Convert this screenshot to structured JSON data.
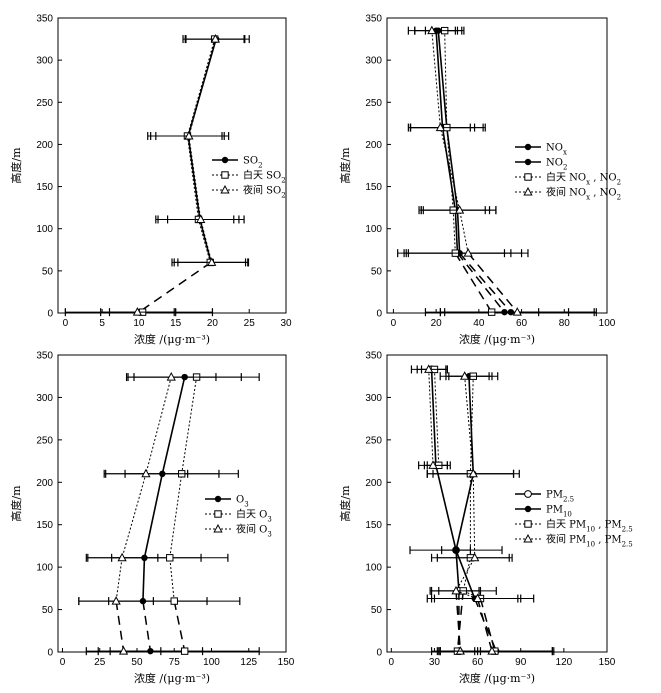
{
  "chart_data": [
    {
      "type": "line",
      "id": "so2",
      "xlabel": "浓度 /(μg·m⁻³)",
      "ylabel": "高度/m",
      "xlim": [
        -1,
        30
      ],
      "ylim": [
        0,
        350
      ],
      "xticks": [
        0,
        5,
        10,
        15,
        20,
        25,
        30
      ],
      "yticks": [
        0,
        50,
        100,
        150,
        200,
        250,
        300,
        350
      ],
      "legend_position": "right-middle",
      "series": [
        {
          "name": "SO₂",
          "marker": "dot",
          "line": "solid",
          "points": [
            [
              20.5,
              325,
              4.5
            ],
            [
              16.7,
              210,
              5.5
            ],
            [
              18.3,
              111,
              6
            ],
            [
              19.8,
              60,
              5
            ],
            [
              10.0,
              1,
              10
            ]
          ]
        },
        {
          "name": "白天 SO₂",
          "marker": "square",
          "line": "dotted",
          "points": [
            [
              20.3,
              325,
              4
            ],
            [
              16.6,
              210,
              5
            ],
            [
              18.1,
              111,
              5.5
            ],
            [
              19.7,
              60,
              5.2
            ],
            [
              10.5,
              1,
              4.5
            ]
          ]
        },
        {
          "name": "夜间 SO₂",
          "marker": "triangle",
          "line": "dotted",
          "points": [
            [
              20.4,
              325,
              4
            ],
            [
              16.8,
              210,
              4.5
            ],
            [
              18.4,
              111,
              4.5
            ],
            [
              19.9,
              60,
              4.6
            ],
            [
              9.8,
              1,
              5
            ]
          ]
        }
      ],
      "surface_links": [
        [
          19.8,
          60,
          10.0,
          1
        ]
      ]
    },
    {
      "type": "line",
      "id": "no2",
      "xlabel": "浓度 /(μg·m⁻³)",
      "ylabel": "高度/m",
      "xlim": [
        -3,
        100
      ],
      "ylim": [
        0,
        350
      ],
      "xticks": [
        0,
        20,
        40,
        60,
        80,
        100
      ],
      "yticks": [
        0,
        50,
        100,
        150,
        200,
        250,
        300,
        350
      ],
      "legend_position": "right-middle",
      "series": [
        {
          "name": "NOₓ",
          "marker": "dot",
          "line": "solid",
          "points": [
            [
              21,
              335,
              11
            ],
            [
              25,
              220,
              18
            ],
            [
              30,
              122,
              18
            ],
            [
              31,
              71,
              29
            ],
            [
              55,
              1,
              40
            ]
          ]
        },
        {
          "name": "NO₂",
          "marker": "dot",
          "line": "solid",
          "points": [
            [
              20,
              335,
              10
            ],
            [
              23,
              220,
              15
            ],
            [
              29,
              122,
              16
            ],
            [
              30,
              71,
              25
            ],
            [
              52,
              1,
              30
            ]
          ]
        },
        {
          "name": "白天 NOₓ , NO₂",
          "marker": "square",
          "line": "dotted",
          "points": [
            [
              24,
              335,
              9
            ],
            [
              25,
              220,
              17
            ],
            [
              28,
              122,
              15
            ],
            [
              29,
              71,
              23
            ],
            [
              46,
              1,
              22
            ]
          ]
        },
        {
          "name": "夜间 NOₓ , NO₂",
          "marker": "triangle",
          "line": "dotted",
          "points": [
            [
              18,
              335,
              11
            ],
            [
              22,
              220,
              14
            ],
            [
              31,
              122,
              17
            ],
            [
              35,
              71,
              28
            ],
            [
              58,
              1,
              36
            ]
          ]
        }
      ],
      "surface_links": [
        [
          31,
          71,
          55,
          1
        ],
        [
          30,
          71,
          52,
          1
        ],
        [
          29,
          71,
          46,
          1
        ],
        [
          35,
          71,
          58,
          1
        ]
      ]
    },
    {
      "type": "line",
      "id": "o3",
      "xlabel": "浓度 /(μg·m⁻³)",
      "ylabel": "高度/m",
      "xlim": [
        -3,
        150
      ],
      "ylim": [
        0,
        350
      ],
      "xticks": [
        0,
        25,
        50,
        75,
        100,
        125,
        150
      ],
      "yticks": [
        0,
        50,
        100,
        150,
        200,
        250,
        300,
        350
      ],
      "legend_position": "right-middle",
      "series": [
        {
          "name": "O₃",
          "marker": "dot",
          "line": "solid",
          "points": [
            [
              82,
              324,
              38
            ],
            [
              67,
              210,
              38
            ],
            [
              55,
              111,
              38
            ],
            [
              54,
              60,
              43
            ],
            [
              59,
              1,
              35
            ]
          ]
        },
        {
          "name": "白天 O₃",
          "marker": "square",
          "line": "dotted",
          "points": [
            [
              90,
              324,
              42
            ],
            [
              80,
              210,
              38
            ],
            [
              72,
              111,
              39
            ],
            [
              75,
              60,
              44
            ],
            [
              82,
              1,
              50
            ]
          ]
        },
        {
          "name": "夜间 O₃",
          "marker": "triangle",
          "line": "dotted",
          "points": [
            [
              73,
              324,
              30
            ],
            [
              56,
              210,
              28
            ],
            [
              40,
              111,
              24
            ],
            [
              36,
              60,
              25
            ],
            [
              41,
              1,
              25
            ]
          ]
        }
      ],
      "surface_links": [
        [
          54,
          60,
          59,
          1
        ],
        [
          75,
          60,
          82,
          1
        ],
        [
          36,
          60,
          41,
          1
        ]
      ]
    },
    {
      "type": "line",
      "id": "pm",
      "xlabel": "浓度 /(μg·m⁻³)",
      "ylabel": "高度/m",
      "xlim": [
        -3,
        150
      ],
      "ylim": [
        0,
        350
      ],
      "xticks": [
        0,
        30,
        60,
        90,
        120,
        150
      ],
      "yticks": [
        0,
        50,
        100,
        150,
        200,
        250,
        300,
        350
      ],
      "legend_position": "right-middle",
      "series": [
        {
          "name": "PM₂.₅",
          "marker": "circle",
          "line": "solid",
          "points": [
            [
              28,
              333,
              10
            ],
            [
              31,
              220,
              8
            ],
            [
              45,
              120,
              10
            ],
            [
              47,
              72,
              14
            ],
            [
              47,
              1,
              13
            ]
          ]
        },
        {
          "name": "PM₁₀",
          "marker": "dot",
          "line": "solid",
          "points": [
            [
              54,
              325,
              16
            ],
            [
              57,
              210,
              32
            ],
            [
              45,
              120,
              32
            ],
            [
              58,
              63,
              30
            ],
            [
              73,
              1,
              40
            ]
          ]
        },
        {
          "name": "白天 PM₁₀ , PM₂.₅",
          "marker": "square",
          "line": "dotted",
          "points": [
            [
              57,
              325,
              17
            ],
            [
              55,
              210,
              30
            ],
            [
              55,
              111,
              27
            ],
            [
              50,
              72,
              23
            ],
            [
              62,
              63,
              37
            ],
            [
              30,
              333,
              9
            ],
            [
              33,
              220,
              8
            ],
            [
              46,
              1,
              12
            ],
            [
              72,
              1,
              40
            ]
          ]
        },
        {
          "name": "夜间 PM₁₀ , PM₂.₅",
          "marker": "triangle",
          "line": "dotted",
          "points": [
            [
              51,
              325,
              17
            ],
            [
              57,
              210,
              28
            ],
            [
              58,
              111,
              26
            ],
            [
              45,
              72,
              17
            ],
            [
              60,
              63,
              30
            ],
            [
              26,
              333,
              12
            ],
            [
              29,
              220,
              10
            ],
            [
              48,
              1,
              14
            ],
            [
              70,
              1,
              42
            ]
          ]
        }
      ],
      "surface_links": [
        [
          47,
          72,
          47,
          1
        ],
        [
          58,
          63,
          73,
          1
        ],
        [
          50,
          72,
          46,
          1
        ],
        [
          62,
          63,
          72,
          1
        ],
        [
          45,
          72,
          48,
          1
        ],
        [
          60,
          63,
          70,
          1
        ]
      ]
    }
  ],
  "legend_text": {
    "so2": [
      "SO",
      "白天 SO",
      "夜间 SO"
    ],
    "no2": [
      "NO",
      "NO",
      "白天 NO",
      "夜间 NO"
    ],
    "o3": [
      "O",
      "白天 O",
      "夜间 O"
    ],
    "pm": [
      "PM",
      "PM",
      "白天 PM",
      "夜间 PM"
    ]
  },
  "legend_subs": {
    "so2": [
      "2",
      "2",
      "2"
    ],
    "no2": [
      "x",
      "2",
      "x , NO2",
      "x , NO2"
    ],
    "o3": [
      "3",
      "3",
      "3"
    ],
    "pm": [
      "2.5",
      "10",
      "10 , PM2.5",
      "10 , PM2.5"
    ]
  }
}
